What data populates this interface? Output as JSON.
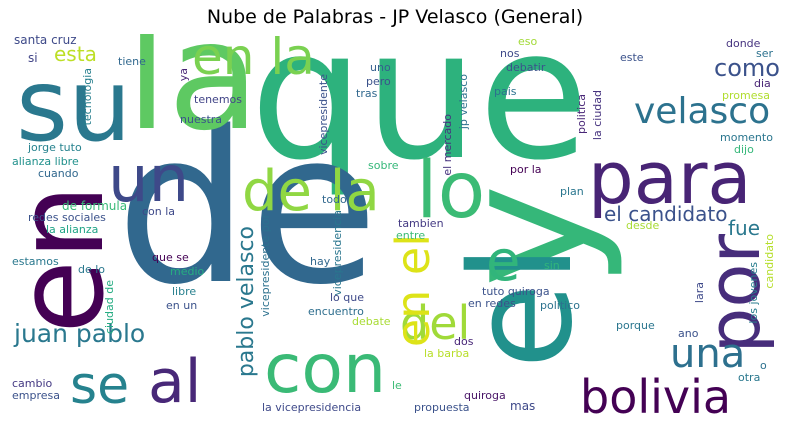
{
  "title": "Nube de Palabras - JP Velasco (General)",
  "words": [
    {
      "text": "que",
      "color": "#2db27d"
    },
    {
      "text": "de",
      "color": "#31688e"
    },
    {
      "text": "la",
      "color": "#5ec962"
    },
    {
      "text": "y",
      "color": "#35b779"
    },
    {
      "text": "el",
      "color": "#21918c"
    },
    {
      "text": "en",
      "color": "#440154"
    },
    {
      "text": "su",
      "color": "#2a788e"
    },
    {
      "text": "para",
      "color": "#482475"
    },
    {
      "text": "con",
      "color": "#3aba76"
    },
    {
      "text": "por",
      "color": "#472d7b"
    },
    {
      "text": "lo",
      "color": "#3bbb75"
    },
    {
      "text": "un",
      "color": "#3e4989"
    },
    {
      "text": "de la",
      "color": "#90d743"
    },
    {
      "text": "en la",
      "color": "#7ad151"
    },
    {
      "text": "al",
      "color": "#482878"
    },
    {
      "text": "se",
      "color": "#26828e"
    },
    {
      "text": "bolivia",
      "color": "#440154"
    },
    {
      "text": "velasco",
      "color": "#2c728e"
    },
    {
      "text": "una",
      "color": "#2d708e"
    },
    {
      "text": "e",
      "color": "#31b57b"
    },
    {
      "text": "del",
      "color": "#a0da39"
    },
    {
      "text": "en el",
      "color": "#dde318"
    },
    {
      "text": "como",
      "color": "#3b528b"
    },
    {
      "text": "juan pablo",
      "color": "#2a788e"
    },
    {
      "text": "pablo velasco",
      "color": "#2a788e"
    },
    {
      "text": "el candidato",
      "color": "#3b528b"
    },
    {
      "text": "fue",
      "color": "#2a788e"
    },
    {
      "text": "esta",
      "color": "#bddf26"
    },
    {
      "text": "santa cruz",
      "color": "#3e4a89"
    },
    {
      "text": "si",
      "color": "#414487"
    },
    {
      "text": "tecnologia",
      "color": "#277f8e"
    },
    {
      "text": "ya",
      "color": "#482475"
    },
    {
      "text": "tiene",
      "color": "#31688e"
    },
    {
      "text": "tenemos",
      "color": "#414487"
    },
    {
      "text": "nuestra",
      "color": "#3b528b"
    },
    {
      "text": "jorge tuto",
      "color": "#26828e"
    },
    {
      "text": "alianza libre",
      "color": "#21918c"
    },
    {
      "text": "cuando",
      "color": "#31688e"
    },
    {
      "text": "de formula",
      "color": "#38b977"
    },
    {
      "text": "redes sociales",
      "color": "#3b528b"
    },
    {
      "text": "la alianza",
      "color": "#20a486"
    },
    {
      "text": "con la",
      "color": "#3e4989"
    },
    {
      "text": "estamos",
      "color": "#2a788e"
    },
    {
      "text": "de lo",
      "color": "#2a788e"
    },
    {
      "text": "ciudad de",
      "color": "#25ac82"
    },
    {
      "text": "que se",
      "color": "#440154"
    },
    {
      "text": "medio",
      "color": "#26ad81"
    },
    {
      "text": "libre",
      "color": "#27808e"
    },
    {
      "text": "en un",
      "color": "#3b528b"
    },
    {
      "text": "cambio",
      "color": "#443983"
    },
    {
      "text": "empresa",
      "color": "#3b528b"
    },
    {
      "text": "vicepresidente",
      "color": "#3b528b"
    },
    {
      "text": "vicepresidente por",
      "color": "#2c718e"
    },
    {
      "text": "vicepresidencia",
      "color": "#2a768e"
    },
    {
      "text": "la vicepresidencia",
      "color": "#3e4989"
    },
    {
      "text": "uno",
      "color": "#35608d"
    },
    {
      "text": "pero",
      "color": "#3b528b"
    },
    {
      "text": "tras",
      "color": "#31688e"
    },
    {
      "text": "nos",
      "color": "#3e4989"
    },
    {
      "text": "eso",
      "color": "#a2da37"
    },
    {
      "text": "debatir",
      "color": "#3b528b"
    },
    {
      "text": "pais",
      "color": "#2c718e"
    },
    {
      "text": "jp velasco",
      "color": "#2c718e"
    },
    {
      "text": "el mercado",
      "color": "#46327e"
    },
    {
      "text": "sobre",
      "color": "#35b779"
    },
    {
      "text": "todo",
      "color": "#31688e"
    },
    {
      "text": "tambien",
      "color": "#443a83"
    },
    {
      "text": "entre",
      "color": "#3bbb75"
    },
    {
      "text": "por la",
      "color": "#440154"
    },
    {
      "text": "plan",
      "color": "#2a768e"
    },
    {
      "text": "hay",
      "color": "#31688e"
    },
    {
      "text": "lo que",
      "color": "#3e4989"
    },
    {
      "text": "encuentro",
      "color": "#2e6e8e"
    },
    {
      "text": "debate",
      "color": "#a8db34"
    },
    {
      "text": "sin",
      "color": "#31b57b"
    },
    {
      "text": "tuto quiroga",
      "color": "#3b528b"
    },
    {
      "text": "en redes",
      "color": "#3b528b"
    },
    {
      "text": "politico",
      "color": "#2c728e"
    },
    {
      "text": "la barba",
      "color": "#b8de29"
    },
    {
      "text": "dos",
      "color": "#482677"
    },
    {
      "text": "le",
      "color": "#3bbb75"
    },
    {
      "text": "quiroga",
      "color": "#481467"
    },
    {
      "text": "propuesta",
      "color": "#3b528b"
    },
    {
      "text": "mas",
      "color": "#3e4989"
    },
    {
      "text": "politica",
      "color": "#482677"
    },
    {
      "text": "la ciudad",
      "color": "#46337f"
    },
    {
      "text": "este",
      "color": "#3b528b"
    },
    {
      "text": "donde",
      "color": "#46337f"
    },
    {
      "text": "ser",
      "color": "#2c718e"
    },
    {
      "text": "dia",
      "color": "#482475"
    },
    {
      "text": "promesa",
      "color": "#b0dd2f"
    },
    {
      "text": "momento",
      "color": "#2a768e"
    },
    {
      "text": "dijo",
      "color": "#35b779"
    },
    {
      "text": "desde",
      "color": "#a8db34"
    },
    {
      "text": "lara",
      "color": "#3e4989"
    },
    {
      "text": "ano",
      "color": "#3b528b"
    },
    {
      "text": "porque",
      "color": "#2a768e"
    },
    {
      "text": "los jovenes",
      "color": "#287d8e"
    },
    {
      "text": "candidato",
      "color": "#b5de2b"
    },
    {
      "text": "o",
      "color": "#2c718e"
    },
    {
      "text": "otra",
      "color": "#2a788e"
    }
  ]
}
